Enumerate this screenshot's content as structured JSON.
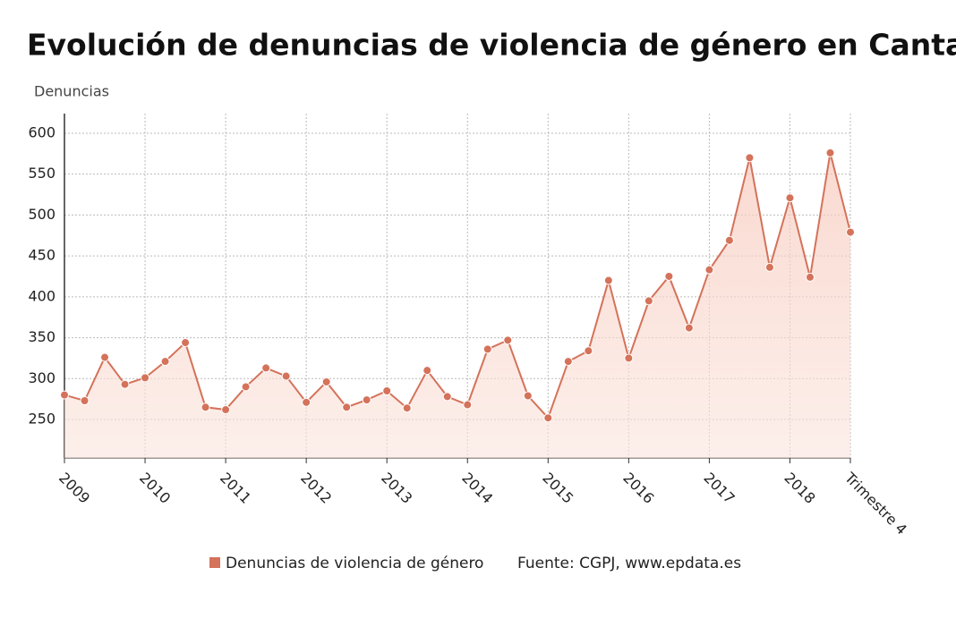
{
  "chart_data": {
    "type": "line",
    "title": "Evolución de denuncias de violencia de género en Cantabria",
    "y_label": "Denuncias",
    "source": "Fuente: CGPJ, www.epdata.es",
    "categories": [
      "2009",
      null,
      null,
      null,
      "2010",
      null,
      null,
      null,
      "2011",
      null,
      null,
      null,
      "2012",
      null,
      null,
      null,
      "2013",
      null,
      null,
      null,
      "2014",
      null,
      null,
      null,
      "2015",
      null,
      null,
      null,
      "2016",
      null,
      null,
      null,
      "2017",
      null,
      null,
      null,
      "2018",
      null,
      null,
      "Trimestre 4"
    ],
    "series": [
      {
        "name": "Denuncias de violencia de género",
        "color": "#d4725a",
        "values": [
          280,
          273,
          326,
          293,
          301,
          321,
          344,
          265,
          262,
          290,
          313,
          303,
          271,
          296,
          265,
          274,
          285,
          264,
          310,
          278,
          268,
          336,
          347,
          279,
          252,
          321,
          334,
          420,
          325,
          395,
          425,
          362,
          433,
          469,
          570,
          436,
          521,
          424,
          576,
          479
        ]
      }
    ],
    "ylim": [
      203,
      624
    ],
    "yticks": [
      250,
      300,
      350,
      400,
      450,
      500,
      550,
      600
    ],
    "grid": true
  }
}
